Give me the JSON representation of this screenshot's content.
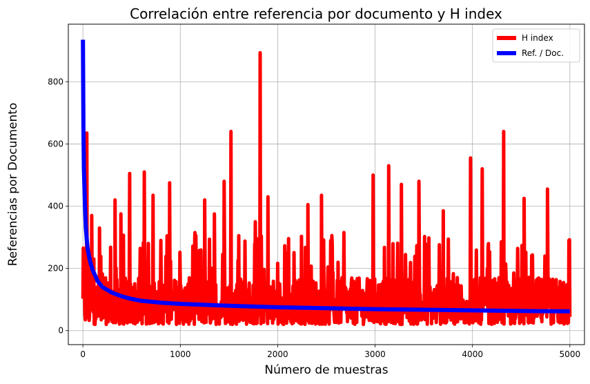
{
  "chart_data": {
    "type": "line",
    "title": "Correlación entre referencia por documento y H index",
    "xlabel": "Número de muestras",
    "ylabel": "Referencias por Documento",
    "xlim": [
      -150,
      5150
    ],
    "ylim": [
      -45,
      985
    ],
    "xticks": [
      0,
      1000,
      2000,
      3000,
      4000,
      5000
    ],
    "yticks": [
      0,
      200,
      400,
      600,
      800
    ],
    "grid": true,
    "legend_position": "top-right",
    "series": [
      {
        "name": "H index",
        "color": "#ff0000",
        "style": "noisy",
        "n": 5000,
        "baseline_range": [
          20,
          170
        ],
        "spikes": [
          {
            "x": 40,
            "y": 635
          },
          {
            "x": 90,
            "y": 370
          },
          {
            "x": 170,
            "y": 330
          },
          {
            "x": 330,
            "y": 420
          },
          {
            "x": 390,
            "y": 375
          },
          {
            "x": 480,
            "y": 505
          },
          {
            "x": 630,
            "y": 510
          },
          {
            "x": 720,
            "y": 435
          },
          {
            "x": 800,
            "y": 290
          },
          {
            "x": 890,
            "y": 475
          },
          {
            "x": 1150,
            "y": 315
          },
          {
            "x": 1250,
            "y": 420
          },
          {
            "x": 1350,
            "y": 375
          },
          {
            "x": 1450,
            "y": 480
          },
          {
            "x": 1520,
            "y": 640
          },
          {
            "x": 1600,
            "y": 305
          },
          {
            "x": 1770,
            "y": 350
          },
          {
            "x": 1820,
            "y": 893
          },
          {
            "x": 1900,
            "y": 430
          },
          {
            "x": 2100,
            "y": 250
          },
          {
            "x": 2310,
            "y": 405
          },
          {
            "x": 2450,
            "y": 435
          },
          {
            "x": 2680,
            "y": 315
          },
          {
            "x": 2980,
            "y": 500
          },
          {
            "x": 3140,
            "y": 530
          },
          {
            "x": 3270,
            "y": 470
          },
          {
            "x": 3450,
            "y": 480
          },
          {
            "x": 3700,
            "y": 385
          },
          {
            "x": 3980,
            "y": 555
          },
          {
            "x": 4100,
            "y": 520
          },
          {
            "x": 4320,
            "y": 640
          },
          {
            "x": 4530,
            "y": 425
          },
          {
            "x": 4770,
            "y": 455
          },
          {
            "x": 4990,
            "y": 290
          }
        ]
      },
      {
        "name": "Ref. / Doc.",
        "color": "#0000ff",
        "style": "smooth",
        "x": [
          0,
          5,
          10,
          20,
          30,
          40,
          50,
          75,
          100,
          150,
          200,
          300,
          400,
          500,
          600,
          800,
          1000,
          1500,
          2000,
          2500,
          3000,
          3500,
          4000,
          4500,
          5000
        ],
        "y": [
          935,
          650,
          520,
          410,
          330,
          290,
          260,
          220,
          195,
          160,
          140,
          122,
          110,
          102,
          96,
          90,
          86,
          80,
          75,
          72,
          69,
          67,
          65,
          63,
          62
        ]
      }
    ]
  }
}
